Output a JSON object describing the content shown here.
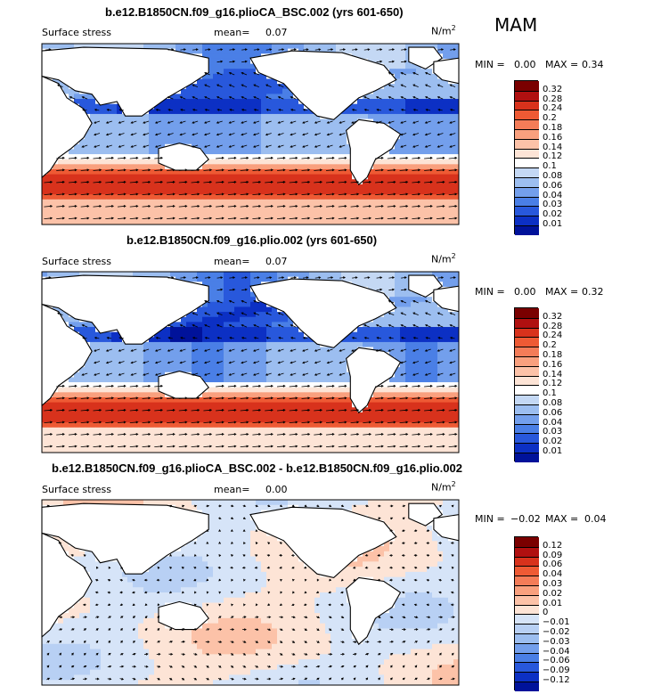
{
  "season": "MAM",
  "chart_data": [
    {
      "type": "heatmap",
      "title": "b.e12.B1850CN.f09_g16.plioCA_BSC.002 (yrs 601-650)",
      "left_label": "Surface stress",
      "mean_label": "mean=",
      "mean_value": "0.07",
      "units_base": "N/m",
      "units_exp": "2",
      "min_label": "MIN =",
      "min_value": "0.00",
      "max_label": "MAX =",
      "max_value": "0.34",
      "legend": {
        "levels": [
          "0.32",
          "0.28",
          "0.24",
          "0.2",
          "0.18",
          "0.16",
          "0.14",
          "0.12",
          "0.1",
          "0.08",
          "0.06",
          "0.04",
          "0.03",
          "0.02",
          "0.01"
        ],
        "colors": [
          "#7a0000",
          "#b01010",
          "#d8321c",
          "#ee5a34",
          "#f47c58",
          "#f9a07e",
          "#fcc2a8",
          "#fde4d6",
          "#ffffff",
          "#c4d8f4",
          "#9cbef0",
          "#739fec",
          "#4a7fe6",
          "#2858dc",
          "#0c30c4",
          "#00129a"
        ]
      }
    },
    {
      "type": "heatmap",
      "title": "b.e12.B1850CN.f09_g16.plio.002 (yrs 601-650)",
      "left_label": "Surface stress",
      "mean_label": "mean=",
      "mean_value": "0.07",
      "units_base": "N/m",
      "units_exp": "2",
      "min_label": "MIN =",
      "min_value": "0.00",
      "max_label": "MAX =",
      "max_value": "0.32",
      "legend": {
        "levels": [
          "0.32",
          "0.28",
          "0.24",
          "0.2",
          "0.18",
          "0.16",
          "0.14",
          "0.12",
          "0.1",
          "0.08",
          "0.06",
          "0.04",
          "0.03",
          "0.02",
          "0.01"
        ],
        "colors": [
          "#7a0000",
          "#b01010",
          "#d8321c",
          "#ee5a34",
          "#f47c58",
          "#f9a07e",
          "#fcc2a8",
          "#fde4d6",
          "#ffffff",
          "#c4d8f4",
          "#9cbef0",
          "#739fec",
          "#4a7fe6",
          "#2858dc",
          "#0c30c4",
          "#00129a"
        ]
      }
    },
    {
      "type": "heatmap",
      "title": "b.e12.B1850CN.f09_g16.plioCA_BSC.002 - b.e12.B1850CN.f09_g16.plio.002",
      "left_label": "Surface stress",
      "mean_label": "mean=",
      "mean_value": "0.00",
      "units_base": "N/m",
      "units_exp": "2",
      "min_label": "MIN =",
      "min_value": "−0.02",
      "max_label": "MAX =",
      "max_value": "0.04",
      "legend": {
        "levels": [
          "0.12",
          "0.09",
          "0.06",
          "0.04",
          "0.03",
          "0.02",
          "0.01",
          "0",
          "−0.01",
          "−0.02",
          "−0.03",
          "−0.04",
          "−0.06",
          "−0.09",
          "−0.12"
        ],
        "colors": [
          "#7a0000",
          "#b01010",
          "#d8321c",
          "#ee5a34",
          "#f47c58",
          "#f9a07e",
          "#fcc2a8",
          "#fde4d6",
          "#d6e4f8",
          "#b8d0f4",
          "#9cbef0",
          "#739fec",
          "#4a7fe6",
          "#2858dc",
          "#0c30c4",
          "#00129a"
        ]
      }
    }
  ]
}
